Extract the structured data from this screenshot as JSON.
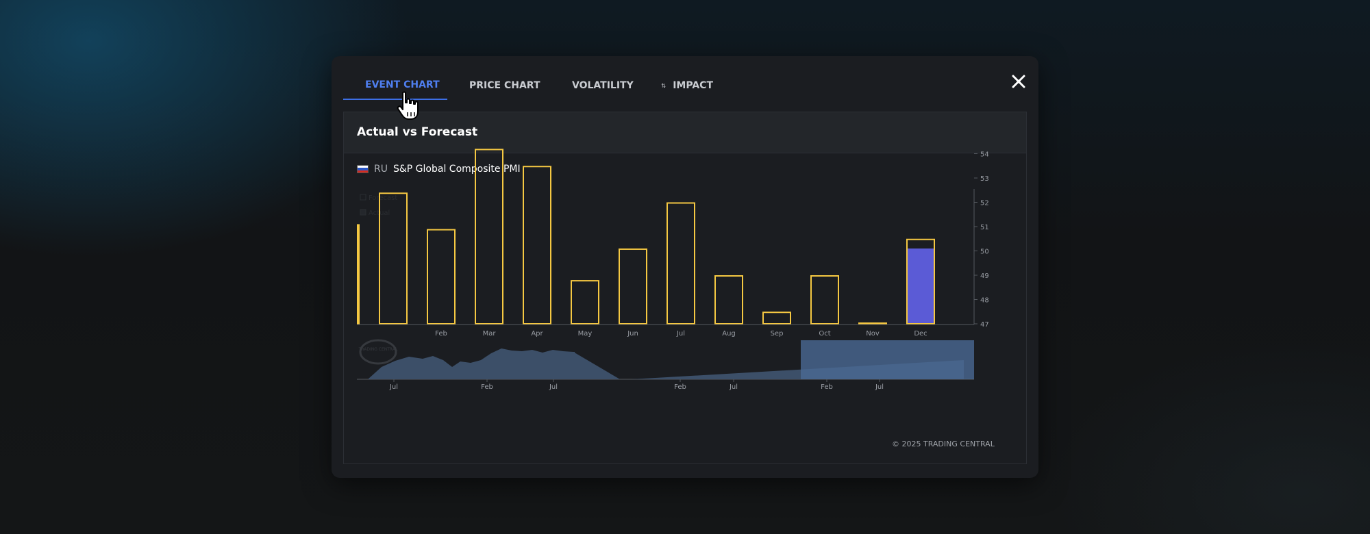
{
  "tabs": [
    {
      "label": "EVENT CHART",
      "icon": "bar-chart-icon",
      "active": true
    },
    {
      "label": "PRICE CHART",
      "icon": "price-chart-icon",
      "active": false
    },
    {
      "label": "VOLATILITY",
      "icon": "volatility-icon",
      "active": false
    },
    {
      "label": "IMPACT",
      "icon": "impact-arrows-icon",
      "active": false
    }
  ],
  "panel": {
    "title": "Actual vs Forecast",
    "country_code": "RU",
    "series_name": "S&P Global Composite PMI"
  },
  "legend": {
    "forecast": "Forecast",
    "actual": "Actual"
  },
  "watermark": "TRADING CENTRAL",
  "copyright": "© 2025 TRADING CENTRAL",
  "colors": {
    "accent": "#4f7ff0",
    "forecast_outline": "#f5c842",
    "actual_fill": "#5b5bd6",
    "navigator_fill": "#3c4f68",
    "navigator_selection": "#4a6994"
  },
  "chart_data": {
    "type": "bar",
    "categories": [
      "",
      "",
      "Feb",
      "Mar",
      "Apr",
      "May",
      "Jun",
      "Jul",
      "Aug",
      "Sep",
      "Oct",
      "Nov",
      "Dec"
    ],
    "series": [
      {
        "name": "Forecast",
        "values": [
          51.1,
          52.4,
          50.9,
          54.2,
          53.5,
          48.8,
          50.1,
          52.0,
          49.0,
          47.5,
          49.0,
          47.05,
          50.5
        ]
      },
      {
        "name": "Actual",
        "values": [
          null,
          null,
          null,
          null,
          null,
          null,
          null,
          null,
          null,
          null,
          null,
          null,
          50.1
        ]
      }
    ],
    "ylim": [
      47,
      54.3
    ],
    "yticks": [
      47,
      48,
      49,
      50,
      51,
      52,
      53,
      54
    ],
    "navigator": {
      "x_labels": [
        "Jul",
        "Feb",
        "Jul",
        "Feb",
        "Jul",
        "Feb",
        "Jul"
      ]
    }
  }
}
